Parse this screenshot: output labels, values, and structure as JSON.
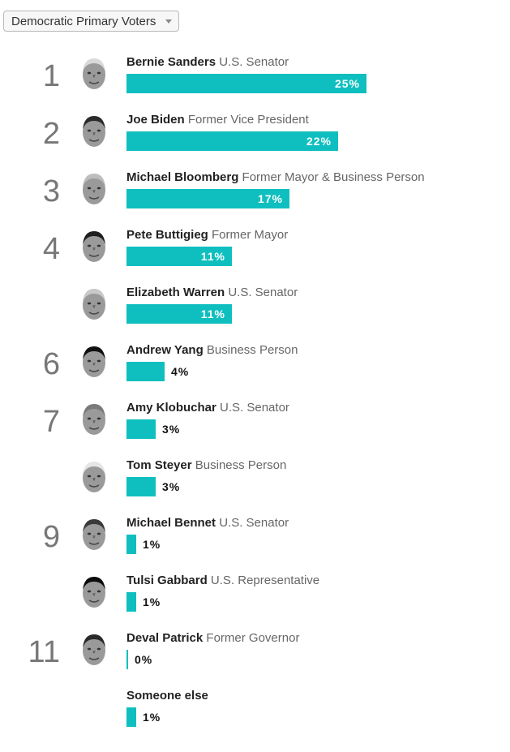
{
  "filter": {
    "selected": "Democratic Primary Voters"
  },
  "chart_data": {
    "type": "bar",
    "orientation": "horizontal",
    "unit": "%",
    "rows": [
      {
        "rank": "1",
        "name": "Bernie Sanders",
        "role": "U.S. Senator",
        "value": 25,
        "label": "25%",
        "has_photo": true
      },
      {
        "rank": "2",
        "name": "Joe Biden",
        "role": "Former Vice President",
        "value": 22,
        "label": "22%",
        "has_photo": true
      },
      {
        "rank": "3",
        "name": "Michael Bloomberg",
        "role": "Former Mayor & Business Person",
        "value": 17,
        "label": "17%",
        "has_photo": true
      },
      {
        "rank": "4",
        "name": "Pete Buttigieg",
        "role": "Former Mayor",
        "value": 11,
        "label": "11%",
        "has_photo": true
      },
      {
        "rank": "",
        "name": "Elizabeth Warren",
        "role": "U.S. Senator",
        "value": 11,
        "label": "11%",
        "has_photo": true
      },
      {
        "rank": "6",
        "name": "Andrew Yang",
        "role": "Business Person",
        "value": 4,
        "label": "4%",
        "has_photo": true
      },
      {
        "rank": "7",
        "name": "Amy Klobuchar",
        "role": "U.S. Senator",
        "value": 3,
        "label": "3%",
        "has_photo": true
      },
      {
        "rank": "",
        "name": "Tom Steyer",
        "role": "Business Person",
        "value": 3,
        "label": "3%",
        "has_photo": true
      },
      {
        "rank": "9",
        "name": "Michael Bennet",
        "role": "U.S. Senator",
        "value": 1,
        "label": "1%",
        "has_photo": true
      },
      {
        "rank": "",
        "name": "Tulsi Gabbard",
        "role": "U.S. Representative",
        "value": 1,
        "label": "1%",
        "has_photo": true
      },
      {
        "rank": "11",
        "name": "Deval Patrick",
        "role": "Former Governor",
        "value": 0,
        "label": "0%",
        "has_photo": true
      },
      {
        "rank": "",
        "name": "Someone else",
        "role": "",
        "value": 1,
        "label": "1%",
        "has_photo": false
      }
    ]
  },
  "colors": {
    "bar": "#0fbfbf",
    "rank": "#777777",
    "role": "#666666"
  }
}
